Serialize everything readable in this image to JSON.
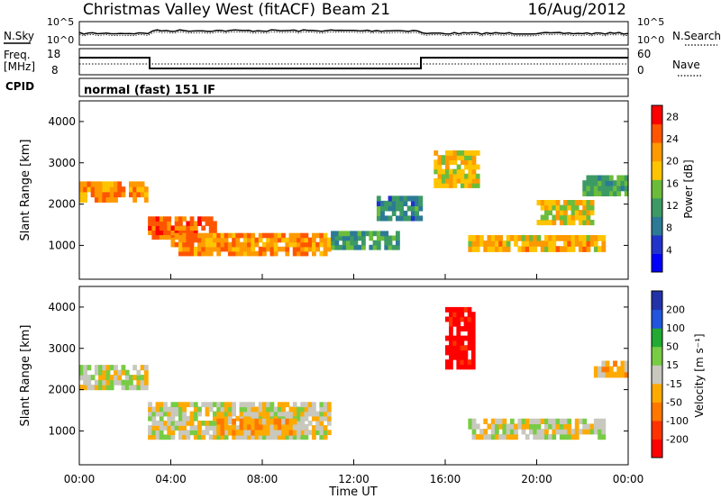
{
  "header": {
    "station": "Christmas Valley West (fitACF)",
    "beam": "Beam 21",
    "date": "16/Aug/2012"
  },
  "strips": {
    "nsky_label": "N.Sky",
    "nsearch_label": "N.Search",
    "noise_ticks": [
      "10^5",
      "10^0"
    ],
    "freq_label_1": "Freq.",
    "freq_label_2": "[MHz]",
    "freq_ticks": [
      "18",
      "8"
    ],
    "nave_label": "Nave",
    "nave_ticks": [
      "60",
      "0"
    ],
    "cpid_label": "CPID",
    "cpid_value": "normal (fast) 151 IF"
  },
  "colors": {
    "power_scale": [
      "#0000ff",
      "#2233cc",
      "#2c7a96",
      "#3c9a64",
      "#6cbc3c",
      "#ffc400",
      "#ff9900",
      "#ff5500",
      "#ff0000"
    ],
    "velocity_scale": [
      "#2233aa",
      "#2255dd",
      "#22aa33",
      "#77cc44",
      "#c8c8be",
      "#ffaa00",
      "#ff7700",
      "#ff3300",
      "#ff0000"
    ]
  },
  "x_axis": {
    "title": "Time UT",
    "ticks": [
      "00:00",
      "04:00",
      "08:00",
      "12:00",
      "16:00",
      "20:00",
      "00:00"
    ]
  },
  "chart_data": [
    {
      "type": "heatmap",
      "name": "power-panel",
      "ylabel": "Slant Range [km]",
      "ylim": [
        180,
        4500
      ],
      "y_ticks": [
        1000,
        2000,
        3000,
        4000
      ],
      "x_hours": [
        0,
        24
      ],
      "colorbar": {
        "label": "Power [dB]",
        "ticks": [
          "4",
          "8",
          "12",
          "16",
          "20",
          "24",
          "28"
        ],
        "range": [
          0,
          30
        ]
      },
      "regions": [
        {
          "t0": 0.0,
          "t1": 3.0,
          "r0": 2050,
          "r1": 2550,
          "v": 22
        },
        {
          "t0": 3.0,
          "t1": 6.0,
          "r0": 1150,
          "r1": 1700,
          "v": 24
        },
        {
          "t0": 4.0,
          "t1": 11.0,
          "r0": 750,
          "r1": 1300,
          "v": 22
        },
        {
          "t0": 11.0,
          "t1": 14.0,
          "r0": 900,
          "r1": 1350,
          "v": 12
        },
        {
          "t0": 13.0,
          "t1": 15.0,
          "r0": 1600,
          "r1": 2200,
          "v": 10
        },
        {
          "t0": 15.5,
          "t1": 17.5,
          "r0": 2400,
          "r1": 3300,
          "v": 18
        },
        {
          "t0": 17.0,
          "t1": 23.0,
          "r0": 850,
          "r1": 1250,
          "v": 20
        },
        {
          "t0": 20.0,
          "t1": 22.5,
          "r0": 1500,
          "r1": 2100,
          "v": 18
        },
        {
          "t0": 22.0,
          "t1": 24.0,
          "r0": 2200,
          "r1": 2700,
          "v": 12
        }
      ]
    },
    {
      "type": "heatmap",
      "name": "velocity-panel",
      "ylabel": "Slant Range [km]",
      "ylim": [
        180,
        4500
      ],
      "y_ticks": [
        1000,
        2000,
        3000,
        4000
      ],
      "x_hours": [
        0,
        24
      ],
      "colorbar": {
        "label": "Velocity [m s⁻¹]",
        "ticks": [
          "200",
          "100",
          "50",
          "15",
          "-15",
          "-50",
          "-100",
          "-200"
        ],
        "range": [
          -250,
          250
        ]
      },
      "regions": [
        {
          "t0": 0.0,
          "t1": 3.0,
          "r0": 2000,
          "r1": 2600,
          "v": 0
        },
        {
          "t0": 3.0,
          "t1": 11.0,
          "r0": 800,
          "r1": 1700,
          "v": -5
        },
        {
          "t0": 6.0,
          "t1": 10.0,
          "r0": 900,
          "r1": 1300,
          "v": -60
        },
        {
          "t0": 16.0,
          "t1": 17.3,
          "r0": 2500,
          "r1": 4000,
          "v": -230
        },
        {
          "t0": 17.0,
          "t1": 23.0,
          "r0": 800,
          "r1": 1300,
          "v": 0
        },
        {
          "t0": 22.5,
          "t1": 24.0,
          "r0": 2300,
          "r1": 2700,
          "v": -40
        }
      ]
    }
  ]
}
